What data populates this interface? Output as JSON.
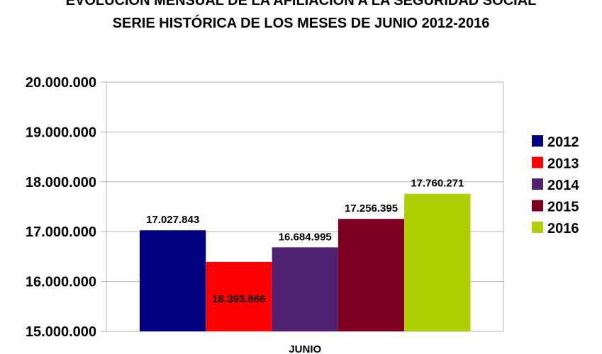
{
  "chart_data": {
    "type": "bar",
    "title": "EVOLUCIÓN MENSUAL DE LA  AFILIACIÓN A LA SEGURIDAD SOCIAL",
    "subtitle": "SERIE HISTÓRICA DE LOS MESES DE JUNIO 2012-2016",
    "categories": [
      "JUNIO"
    ],
    "series": [
      {
        "name": "2012",
        "values": [
          17027843
        ],
        "label": "17.027.843",
        "color": "#000080"
      },
      {
        "name": "2013",
        "values": [
          16393866
        ],
        "label": "16.393.866",
        "color": "#ff0000"
      },
      {
        "name": "2014",
        "values": [
          16684995
        ],
        "label": "16.684.995",
        "color": "#4f2170"
      },
      {
        "name": "2015",
        "values": [
          17256395
        ],
        "label": "17.256.395",
        "color": "#7e0021"
      },
      {
        "name": "2016",
        "values": [
          17760271
        ],
        "label": "17.760.271",
        "color": "#aecf00"
      }
    ],
    "ylim": [
      15000000,
      20000000
    ],
    "yticks": [
      {
        "value": 15000000,
        "label": "15.000.000"
      },
      {
        "value": 16000000,
        "label": "16.000.000"
      },
      {
        "value": 17000000,
        "label": "17.000.000"
      },
      {
        "value": 18000000,
        "label": "18.000.000"
      },
      {
        "value": 19000000,
        "label": "19.000.000"
      },
      {
        "value": 20000000,
        "label": "20.000.000"
      }
    ],
    "xlabel": "",
    "ylabel": "",
    "grid": true,
    "legend": "right"
  }
}
